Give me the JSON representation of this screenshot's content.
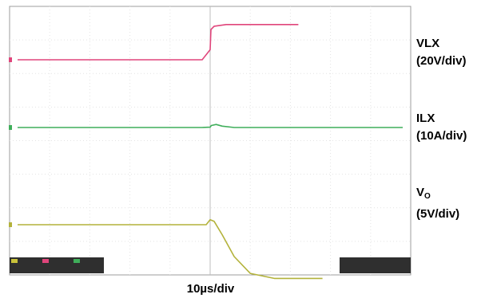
{
  "chart_data": {
    "type": "line",
    "title": "",
    "xlabel": "10µs/div",
    "x_unit": "µs",
    "xlim": [
      -50,
      50
    ],
    "grid": true,
    "grid_divisions": {
      "x": 10,
      "y": 8
    },
    "series": [
      {
        "name": "VLX",
        "label": "VLX",
        "scale": "(20V/div)",
        "color": "#e0457b",
        "x": [
          -48,
          -30,
          -12,
          -2,
          0,
          0.2,
          1,
          4,
          10,
          22
        ],
        "y": [
          0,
          0,
          0,
          0,
          0.3,
          0.9,
          1.0,
          1.05,
          1.05,
          1.05
        ]
      },
      {
        "name": "ILX",
        "label": "ILX",
        "scale": "(10A/div)",
        "color": "#3fae5a",
        "x": [
          -48,
          -30,
          -12,
          -2,
          0,
          0.3,
          1.5,
          3,
          6,
          12,
          48
        ],
        "y": [
          0,
          0,
          0,
          0,
          0.01,
          0.06,
          0.09,
          0.04,
          0,
          0,
          0
        ]
      },
      {
        "name": "VO",
        "label_main": "V",
        "label_sub": "O",
        "scale": "(5V/div)",
        "color": "#b3b23a",
        "x": [
          -48,
          -20,
          -1,
          0,
          1,
          3,
          6,
          10,
          16,
          22,
          28
        ],
        "y": [
          0,
          0,
          0,
          0.15,
          0.1,
          -0.3,
          -0.95,
          -1.45,
          -1.6,
          -1.6,
          -1.6
        ]
      }
    ]
  },
  "labels": {
    "vlx_main": "VLX",
    "vlx_scale": "(20V/div)",
    "ilx_main": "ILX",
    "ilx_scale": "(10A/div)",
    "vo_main": "V",
    "vo_sub": "O",
    "vo_scale": "(5V/div)",
    "xaxis": "10µs/div"
  }
}
